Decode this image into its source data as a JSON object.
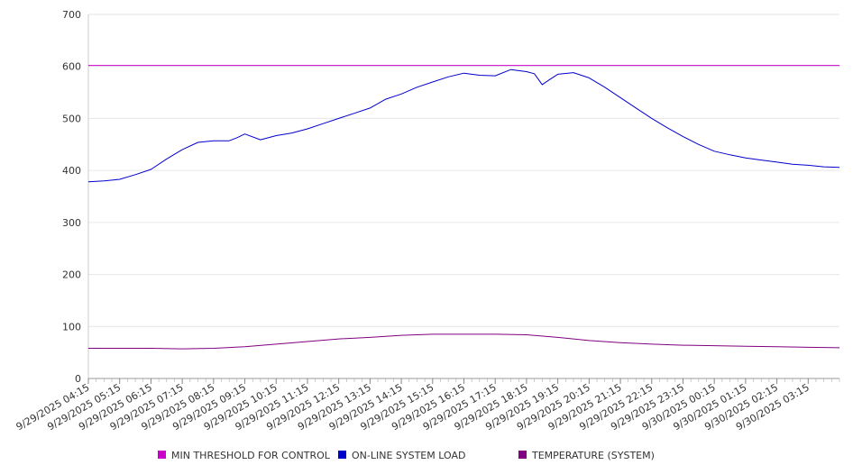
{
  "chart_data": {
    "type": "line",
    "title": "",
    "xlabel": "",
    "ylabel": "",
    "ylim": [
      0,
      700
    ],
    "y_ticks": [
      0,
      100,
      200,
      300,
      400,
      500,
      600,
      700
    ],
    "grid": "horizontal",
    "legend_position": "bottom",
    "x_ticks": [
      "9/29/2025 04:15",
      "9/29/2025 05:15",
      "9/29/2025 06:15",
      "9/29/2025 07:15",
      "9/29/2025 08:15",
      "9/29/2025 09:15",
      "9/29/2025 10:15",
      "9/29/2025 11:15",
      "9/29/2025 12:15",
      "9/29/2025 13:15",
      "9/29/2025 14:15",
      "9/29/2025 15:15",
      "9/29/2025 16:15",
      "9/29/2025 17:15",
      "9/29/2025 18:15",
      "9/29/2025 19:15",
      "9/29/2025 20:15",
      "9/29/2025 21:15",
      "9/29/2025 22:15",
      "9/29/2025 23:15",
      "9/30/2025 00:15",
      "9/30/2025 01:15",
      "9/30/2025 02:15",
      "9/30/2025 03:15"
    ],
    "x_range": [
      "9/29/2025 04:15",
      "9/30/2025 04:15"
    ],
    "series": [
      {
        "name": "MIN THRESHOLD FOR CONTROL",
        "color": "#cc00cc",
        "x": [
          "9/29/2025 04:15",
          "9/30/2025 04:15"
        ],
        "values": [
          602,
          602
        ]
      },
      {
        "name": "ON-LINE SYSTEM LOAD",
        "color": "#0000cc",
        "x": [
          "9/29/2025 04:15",
          "9/29/2025 04:45",
          "9/29/2025 05:15",
          "9/29/2025 05:45",
          "9/29/2025 06:15",
          "9/29/2025 06:45",
          "9/29/2025 07:15",
          "9/29/2025 07:45",
          "9/29/2025 08:15",
          "9/29/2025 08:45",
          "9/29/2025 09:00",
          "9/29/2025 09:15",
          "9/29/2025 09:45",
          "9/29/2025 10:15",
          "9/29/2025 10:45",
          "9/29/2025 11:15",
          "9/29/2025 11:45",
          "9/29/2025 12:15",
          "9/29/2025 12:45",
          "9/29/2025 13:15",
          "9/29/2025 13:45",
          "9/29/2025 14:15",
          "9/29/2025 14:45",
          "9/29/2025 15:15",
          "9/29/2025 15:45",
          "9/29/2025 16:15",
          "9/29/2025 16:45",
          "9/29/2025 17:15",
          "9/29/2025 17:45",
          "9/29/2025 18:15",
          "9/29/2025 18:30",
          "9/29/2025 18:45",
          "9/29/2025 19:00",
          "9/29/2025 19:15",
          "9/29/2025 19:45",
          "9/29/2025 20:15",
          "9/29/2025 20:45",
          "9/29/2025 21:15",
          "9/29/2025 21:45",
          "9/29/2025 22:15",
          "9/29/2025 22:45",
          "9/29/2025 23:15",
          "9/29/2025 23:45",
          "9/30/2025 00:15",
          "9/30/2025 00:45",
          "9/30/2025 01:15",
          "9/30/2025 01:45",
          "9/30/2025 02:15",
          "9/30/2025 02:45",
          "9/30/2025 03:15",
          "9/30/2025 03:45",
          "9/30/2025 04:15"
        ],
        "values": [
          378,
          380,
          383,
          392,
          402,
          422,
          440,
          454,
          457,
          457,
          463,
          470,
          459,
          467,
          472,
          480,
          490,
          500,
          510,
          520,
          537,
          547,
          560,
          570,
          580,
          587,
          583,
          582,
          594,
          590,
          586,
          565,
          575,
          585,
          588,
          578,
          560,
          540,
          520,
          500,
          482,
          465,
          450,
          437,
          430,
          424,
          420,
          416,
          412,
          410,
          407,
          406
        ]
      },
      {
        "name": "TEMPERATURE (SYSTEM)",
        "color": "#800080",
        "x": [
          "9/29/2025 04:15",
          "9/29/2025 06:15",
          "9/29/2025 07:15",
          "9/29/2025 08:15",
          "9/29/2025 09:15",
          "9/29/2025 10:15",
          "9/29/2025 11:15",
          "9/29/2025 12:15",
          "9/29/2025 13:15",
          "9/29/2025 14:15",
          "9/29/2025 15:15",
          "9/29/2025 16:15",
          "9/29/2025 17:15",
          "9/29/2025 18:15",
          "9/29/2025 19:15",
          "9/29/2025 20:15",
          "9/29/2025 21:15",
          "9/29/2025 22:15",
          "9/29/2025 23:15",
          "9/30/2025 00:15",
          "9/30/2025 01:15",
          "9/30/2025 02:15",
          "9/30/2025 03:15",
          "9/30/2025 04:15"
        ],
        "values": [
          58,
          58,
          57,
          58,
          61,
          66,
          71,
          76,
          79,
          83,
          85,
          85,
          85,
          84,
          79,
          73,
          69,
          66,
          64,
          63,
          62,
          61,
          60,
          59
        ]
      }
    ]
  }
}
